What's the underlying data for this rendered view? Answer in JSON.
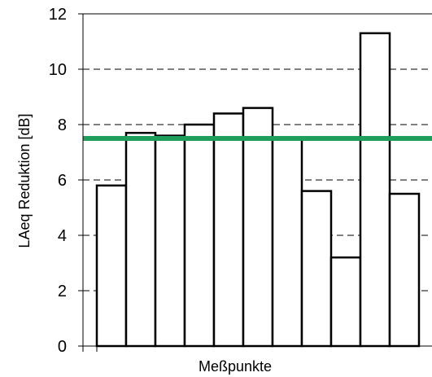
{
  "chart_data": {
    "type": "bar",
    "xlabel": "Meßpunkte",
    "ylabel": "LAeq Reduktion [dB]",
    "ylim": [
      0,
      12
    ],
    "yticks": [
      0,
      2,
      4,
      6,
      8,
      10,
      12
    ],
    "grid": "horizontal-dashed",
    "values": [
      5.8,
      7.7,
      7.6,
      8.0,
      8.4,
      8.6,
      7.5,
      5.6,
      3.2,
      11.3,
      5.5
    ],
    "reference_line": {
      "value": 7.5,
      "color": "#1f9e5b"
    },
    "colors": {
      "bar_fill": "#ffffff",
      "bar_stroke": "#000000",
      "grid": "#000000"
    }
  }
}
